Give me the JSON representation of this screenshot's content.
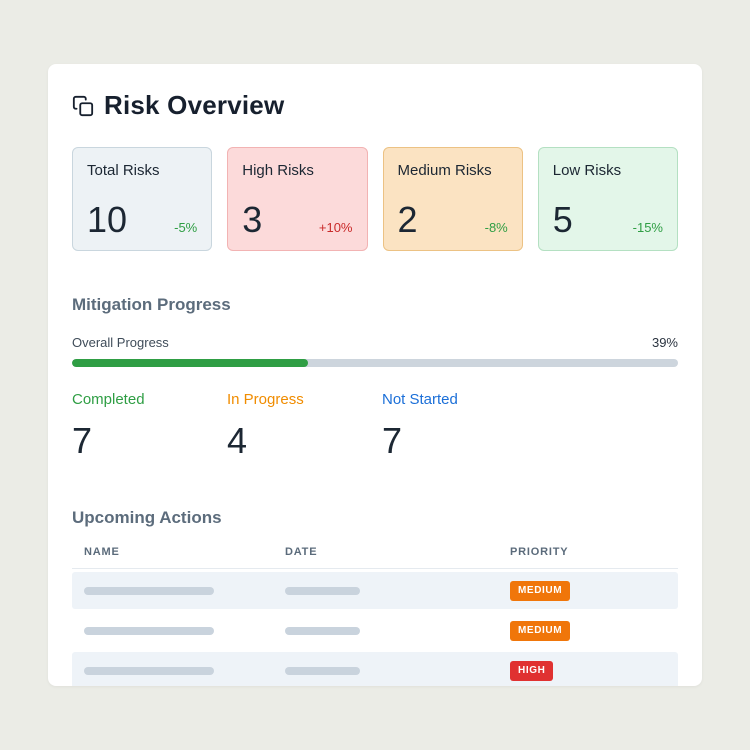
{
  "header": {
    "title": "Risk Overview",
    "icon": "copy-icon"
  },
  "stats": [
    {
      "label": "Total Risks",
      "value": "10",
      "delta": "-5%",
      "bg": "#edf2f5",
      "border": "#c9d6de",
      "delta_color": "#2f9e44"
    },
    {
      "label": "High Risks",
      "value": "3",
      "delta": "+10%",
      "bg": "#fcdada",
      "border": "#f2b3b3",
      "delta_color": "#c92a2a"
    },
    {
      "label": "Medium Risks",
      "value": "2",
      "delta": "-8%",
      "bg": "#fbe3c2",
      "border": "#ecc284",
      "delta_color": "#2f9e44"
    },
    {
      "label": "Low Risks",
      "value": "5",
      "delta": "-15%",
      "bg": "#e3f6e9",
      "border": "#b4e0c2",
      "delta_color": "#2f9e44"
    }
  ],
  "mitigation": {
    "title": "Mitigation Progress",
    "overall_label": "Overall Progress",
    "overall_pct_text": "39%",
    "pct": 39,
    "bar_fill_color": "#2f9e44",
    "bar_track_color": "#cdd5dd",
    "stats": [
      {
        "label": "Completed",
        "value": "7",
        "color": "#2f9e44"
      },
      {
        "label": "In Progress",
        "value": "4",
        "color": "#f08c00"
      },
      {
        "label": "Not Started",
        "value": "7",
        "color": "#1b6fd8"
      }
    ]
  },
  "actions": {
    "title": "Upcoming Actions",
    "columns": [
      "NAME",
      "DATE",
      "PRIORITY"
    ],
    "rows": [
      {
        "priority": "MEDIUM",
        "badge_color": "#f0760a"
      },
      {
        "priority": "MEDIUM",
        "badge_color": "#f0760a"
      },
      {
        "priority": "HIGH",
        "badge_color": "#e03131"
      }
    ]
  }
}
